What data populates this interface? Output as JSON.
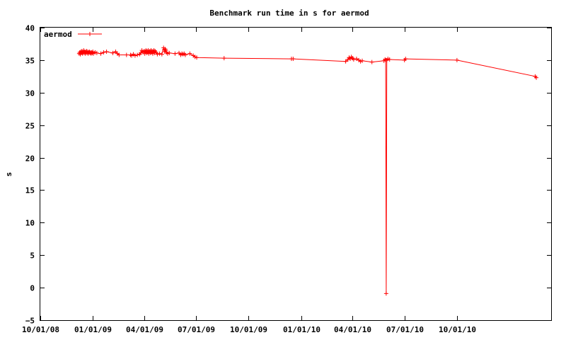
{
  "chart_data": {
    "type": "line",
    "title": "Benchmark run time in s for aermod",
    "xlabel": "",
    "ylabel": "s",
    "ylim": [
      -5,
      40
    ],
    "yticks": [
      -5,
      0,
      5,
      10,
      15,
      20,
      25,
      30,
      35,
      40
    ],
    "xlim": [
      "2008-10-01",
      "2011-03-15"
    ],
    "xticks": [
      {
        "date": "2008-10-01",
        "label": "10/01/08"
      },
      {
        "date": "2009-01-01",
        "label": "01/01/09"
      },
      {
        "date": "2009-04-01",
        "label": "04/01/09"
      },
      {
        "date": "2009-07-01",
        "label": "07/01/09"
      },
      {
        "date": "2009-10-01",
        "label": "10/01/09"
      },
      {
        "date": "2010-01-01",
        "label": "01/01/10"
      },
      {
        "date": "2010-04-01",
        "label": "04/01/10"
      },
      {
        "date": "2010-07-01",
        "label": "07/01/10"
      },
      {
        "date": "2010-10-01",
        "label": "10/01/10"
      }
    ],
    "grid": false,
    "legend": "top-left",
    "color": "#ff0000",
    "series": [
      {
        "name": "aermod",
        "points": [
          [
            "2008-12-08",
            36.0
          ],
          [
            "2008-12-09",
            36.2
          ],
          [
            "2008-12-10",
            35.9
          ],
          [
            "2008-12-11",
            36.3
          ],
          [
            "2008-12-12",
            36.1
          ],
          [
            "2008-12-13",
            36.4
          ],
          [
            "2008-12-14",
            36.0
          ],
          [
            "2008-12-15",
            36.2
          ],
          [
            "2008-12-16",
            36.5
          ],
          [
            "2008-12-17",
            36.1
          ],
          [
            "2008-12-18",
            36.3
          ],
          [
            "2008-12-19",
            36.0
          ],
          [
            "2008-12-20",
            36.2
          ],
          [
            "2008-12-21",
            36.4
          ],
          [
            "2008-12-22",
            36.1
          ],
          [
            "2008-12-23",
            36.3
          ],
          [
            "2008-12-24",
            36.0
          ],
          [
            "2008-12-25",
            36.2
          ],
          [
            "2008-12-26",
            36.3
          ],
          [
            "2008-12-27",
            36.1
          ],
          [
            "2008-12-28",
            36.2
          ],
          [
            "2008-12-29",
            36.0
          ],
          [
            "2008-12-30",
            36.2
          ],
          [
            "2008-12-31",
            36.1
          ],
          [
            "2009-01-01",
            36.3
          ],
          [
            "2009-01-02",
            36.0
          ],
          [
            "2009-01-05",
            36.2
          ],
          [
            "2009-01-08",
            36.1
          ],
          [
            "2009-01-15",
            36.0
          ],
          [
            "2009-01-20",
            36.2
          ],
          [
            "2009-01-25",
            36.3
          ],
          [
            "2009-02-05",
            36.1
          ],
          [
            "2009-02-10",
            36.3
          ],
          [
            "2009-02-13",
            36.0
          ],
          [
            "2009-02-16",
            35.8
          ],
          [
            "2009-03-01",
            35.8
          ],
          [
            "2009-03-08",
            35.8
          ],
          [
            "2009-03-10",
            35.7
          ],
          [
            "2009-03-13",
            35.9
          ],
          [
            "2009-03-16",
            35.7
          ],
          [
            "2009-03-20",
            35.8
          ],
          [
            "2009-03-24",
            35.9
          ],
          [
            "2009-03-26",
            36.1
          ],
          [
            "2009-03-28",
            36.5
          ],
          [
            "2009-03-30",
            36.2
          ],
          [
            "2009-04-01",
            36.4
          ],
          [
            "2009-04-02",
            36.0
          ],
          [
            "2009-04-03",
            36.3
          ],
          [
            "2009-04-04",
            36.5
          ],
          [
            "2009-04-05",
            36.1
          ],
          [
            "2009-04-06",
            36.4
          ],
          [
            "2009-04-07",
            36.2
          ],
          [
            "2009-04-08",
            36.5
          ],
          [
            "2009-04-09",
            36.0
          ],
          [
            "2009-04-10",
            36.3
          ],
          [
            "2009-04-11",
            36.4
          ],
          [
            "2009-04-12",
            36.1
          ],
          [
            "2009-04-13",
            36.5
          ],
          [
            "2009-04-14",
            36.2
          ],
          [
            "2009-04-15",
            36.4
          ],
          [
            "2009-04-16",
            36.0
          ],
          [
            "2009-04-17",
            36.3
          ],
          [
            "2009-04-18",
            36.5
          ],
          [
            "2009-04-19",
            36.1
          ],
          [
            "2009-04-20",
            36.4
          ],
          [
            "2009-04-22",
            36.2
          ],
          [
            "2009-04-24",
            35.9
          ],
          [
            "2009-04-28",
            36.0
          ],
          [
            "2009-05-02",
            35.9
          ],
          [
            "2009-05-05",
            36.9
          ],
          [
            "2009-05-06",
            36.6
          ],
          [
            "2009-05-07",
            36.3
          ],
          [
            "2009-05-08",
            36.7
          ],
          [
            "2009-05-09",
            36.5
          ],
          [
            "2009-05-10",
            36.2
          ],
          [
            "2009-05-12",
            36.0
          ],
          [
            "2009-05-15",
            36.1
          ],
          [
            "2009-05-25",
            36.0
          ],
          [
            "2009-06-01",
            36.1
          ],
          [
            "2009-06-04",
            35.8
          ],
          [
            "2009-06-06",
            36.0
          ],
          [
            "2009-06-08",
            35.9
          ],
          [
            "2009-06-10",
            36.0
          ],
          [
            "2009-06-12",
            35.8
          ],
          [
            "2009-06-20",
            36.0
          ],
          [
            "2009-06-26",
            35.7
          ],
          [
            "2009-06-29",
            35.5
          ],
          [
            "2009-07-02",
            35.4
          ],
          [
            "2009-08-19",
            35.3
          ],
          [
            "2009-12-15",
            35.2
          ],
          [
            "2009-12-18",
            35.2
          ],
          [
            "2010-03-20",
            34.8
          ],
          [
            "2010-03-24",
            35.1
          ],
          [
            "2010-03-26",
            35.4
          ],
          [
            "2010-03-28",
            35.2
          ],
          [
            "2010-03-30",
            35.5
          ],
          [
            "2010-04-01",
            35.3
          ],
          [
            "2010-04-03",
            35.1
          ],
          [
            "2010-04-08",
            35.2
          ],
          [
            "2010-04-12",
            35.0
          ],
          [
            "2010-04-15",
            34.8
          ],
          [
            "2010-04-18",
            34.9
          ],
          [
            "2010-05-05",
            34.7
          ],
          [
            "2010-05-26",
            34.9
          ],
          [
            "2010-05-28",
            35.1
          ],
          [
            "2010-05-29",
            35.0
          ],
          [
            "2010-05-30",
            -0.9
          ],
          [
            "2010-05-31",
            35.0
          ],
          [
            "2010-06-02",
            35.2
          ],
          [
            "2010-06-05",
            35.1
          ],
          [
            "2010-07-01",
            35.0
          ],
          [
            "2010-07-03",
            35.2
          ],
          [
            "2010-10-01",
            35.0
          ],
          [
            "2011-02-15",
            32.5
          ],
          [
            "2011-02-17",
            32.3
          ]
        ]
      }
    ]
  }
}
